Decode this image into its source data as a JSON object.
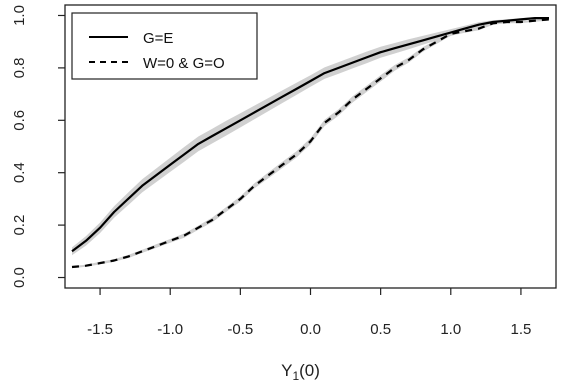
{
  "chart_data": {
    "type": "line",
    "xlabel": "Y",
    "xlabel_sub": "1",
    "xlabel_suffix": "(0)",
    "xlim": [
      -1.75,
      1.75
    ],
    "ylim": [
      0.0,
      1.0
    ],
    "x_ticks": [
      -1.5,
      -1.0,
      -0.5,
      0.0,
      0.5,
      1.0,
      1.5
    ],
    "x_tick_labels": [
      "-1.5",
      "-1.0",
      "-0.5",
      "0.0",
      "0.5",
      "1.0",
      "1.5"
    ],
    "y_ticks": [
      0.0,
      0.2,
      0.4,
      0.6,
      0.8,
      1.0
    ],
    "y_tick_labels": [
      "0.0",
      "0.2",
      "0.4",
      "0.6",
      "0.8",
      "1.0"
    ],
    "legend_position": "top-left",
    "series": [
      {
        "name": "G=E",
        "style": "solid",
        "color": "#000000",
        "x": [
          -1.7,
          -1.6,
          -1.5,
          -1.4,
          -1.3,
          -1.2,
          -1.1,
          -1.0,
          -0.9,
          -0.8,
          -0.7,
          -0.6,
          -0.5,
          -0.4,
          -0.3,
          -0.2,
          -0.1,
          0.0,
          0.1,
          0.2,
          0.3,
          0.4,
          0.5,
          0.6,
          0.7,
          0.8,
          0.9,
          1.0,
          1.1,
          1.2,
          1.3,
          1.4,
          1.5,
          1.6,
          1.7
        ],
        "y": [
          0.1,
          0.14,
          0.19,
          0.25,
          0.3,
          0.35,
          0.39,
          0.43,
          0.47,
          0.51,
          0.54,
          0.57,
          0.6,
          0.63,
          0.66,
          0.69,
          0.72,
          0.75,
          0.78,
          0.8,
          0.82,
          0.84,
          0.86,
          0.875,
          0.89,
          0.905,
          0.92,
          0.935,
          0.95,
          0.965,
          0.975,
          0.98,
          0.985,
          0.99,
          0.99
        ],
        "band_halfwidth": [
          0.015,
          0.018,
          0.02,
          0.022,
          0.024,
          0.025,
          0.026,
          0.027,
          0.028,
          0.028,
          0.028,
          0.028,
          0.027,
          0.026,
          0.025,
          0.024,
          0.023,
          0.022,
          0.022,
          0.022,
          0.022,
          0.022,
          0.021,
          0.02,
          0.019,
          0.017,
          0.015,
          0.013,
          0.011,
          0.009,
          0.007,
          0.006,
          0.005,
          0.004,
          0.004
        ]
      },
      {
        "name": "W=0 & G=O",
        "style": "dashed",
        "color": "#000000",
        "x": [
          -1.7,
          -1.6,
          -1.5,
          -1.4,
          -1.3,
          -1.2,
          -1.1,
          -1.0,
          -0.9,
          -0.8,
          -0.7,
          -0.6,
          -0.5,
          -0.4,
          -0.3,
          -0.2,
          -0.1,
          0.0,
          0.1,
          0.2,
          0.3,
          0.4,
          0.5,
          0.6,
          0.7,
          0.8,
          0.9,
          1.0,
          1.1,
          1.2,
          1.3,
          1.4,
          1.5,
          1.6,
          1.7
        ],
        "y": [
          0.04,
          0.045,
          0.055,
          0.065,
          0.08,
          0.1,
          0.12,
          0.14,
          0.16,
          0.19,
          0.22,
          0.26,
          0.3,
          0.35,
          0.39,
          0.43,
          0.47,
          0.52,
          0.59,
          0.63,
          0.68,
          0.72,
          0.76,
          0.8,
          0.83,
          0.87,
          0.9,
          0.93,
          0.94,
          0.95,
          0.97,
          0.975,
          0.975,
          0.98,
          0.985
        ],
        "band_halfwidth": [
          0.004,
          0.004,
          0.005,
          0.005,
          0.006,
          0.006,
          0.007,
          0.007,
          0.008,
          0.008,
          0.009,
          0.009,
          0.01,
          0.01,
          0.011,
          0.012,
          0.012,
          0.012,
          0.012,
          0.012,
          0.012,
          0.012,
          0.012,
          0.011,
          0.01,
          0.009,
          0.008,
          0.007,
          0.006,
          0.006,
          0.005,
          0.005,
          0.004,
          0.004,
          0.004
        ]
      }
    ]
  },
  "colors": {
    "band": "#d0d0d0",
    "axis": "#222222",
    "background": "#ffffff"
  }
}
